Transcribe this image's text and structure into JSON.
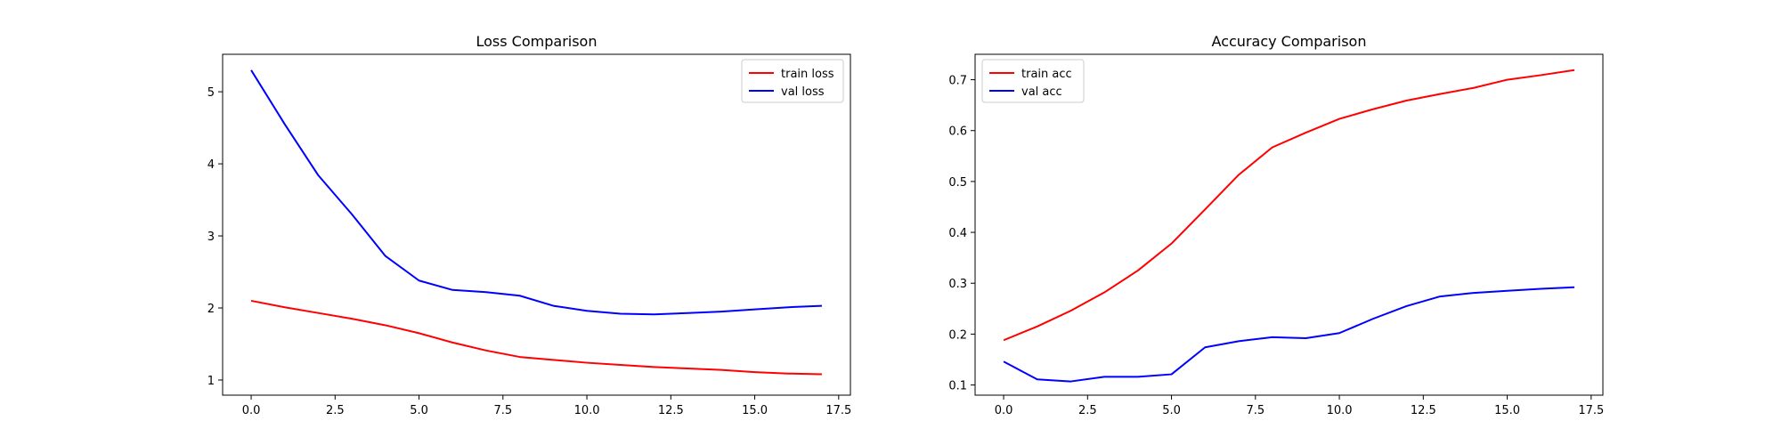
{
  "chart_data": [
    {
      "type": "line",
      "title": "Loss Comparison",
      "xlabel": "",
      "ylabel": "",
      "xlim": [
        -0.85,
        17.85
      ],
      "ylim": [
        0.79,
        5.52
      ],
      "xticks": [
        0.0,
        2.5,
        5.0,
        7.5,
        10.0,
        12.5,
        15.0,
        17.5
      ],
      "xtick_labels": [
        "0.0",
        "2.5",
        "5.0",
        "7.5",
        "10.0",
        "12.5",
        "15.0",
        "17.5"
      ],
      "yticks": [
        1,
        2,
        3,
        4,
        5
      ],
      "ytick_labels": [
        "1",
        "2",
        "3",
        "4",
        "5"
      ],
      "grid": false,
      "legend_position": "upper right",
      "x": [
        0,
        1,
        2,
        3,
        4,
        5,
        6,
        7,
        8,
        9,
        10,
        11,
        12,
        13,
        14,
        15,
        16,
        17
      ],
      "series": [
        {
          "name": "train loss",
          "color": "#ff0000",
          "values": [
            2.1,
            2.01,
            1.93,
            1.85,
            1.76,
            1.65,
            1.52,
            1.41,
            1.32,
            1.28,
            1.24,
            1.21,
            1.18,
            1.16,
            1.14,
            1.11,
            1.09,
            1.08
          ]
        },
        {
          "name": "val loss",
          "color": "#0000ff",
          "values": [
            5.3,
            4.55,
            3.84,
            3.3,
            2.72,
            2.38,
            2.25,
            2.22,
            2.17,
            2.03,
            1.96,
            1.92,
            1.91,
            1.93,
            1.95,
            1.98,
            2.01,
            2.03
          ]
        }
      ]
    },
    {
      "type": "line",
      "title": "Accuracy Comparison",
      "xlabel": "",
      "ylabel": "",
      "xlim": [
        -0.85,
        17.85
      ],
      "ylim": [
        0.08,
        0.75
      ],
      "xticks": [
        0.0,
        2.5,
        5.0,
        7.5,
        10.0,
        12.5,
        15.0,
        17.5
      ],
      "xtick_labels": [
        "0.0",
        "2.5",
        "5.0",
        "7.5",
        "10.0",
        "12.5",
        "15.0",
        "17.5"
      ],
      "yticks": [
        0.1,
        0.2,
        0.3,
        0.4,
        0.5,
        0.6,
        0.7
      ],
      "ytick_labels": [
        "0.1",
        "0.2",
        "0.3",
        "0.4",
        "0.5",
        "0.6",
        "0.7"
      ],
      "grid": false,
      "legend_position": "upper left",
      "x": [
        0,
        1,
        2,
        3,
        4,
        5,
        6,
        7,
        8,
        9,
        10,
        11,
        12,
        13,
        14,
        15,
        16,
        17
      ],
      "series": [
        {
          "name": "train acc",
          "color": "#ff0000",
          "values": [
            0.188,
            0.215,
            0.246,
            0.282,
            0.325,
            0.378,
            0.445,
            0.513,
            0.567,
            0.596,
            0.623,
            0.642,
            0.659,
            0.672,
            0.684,
            0.7,
            0.709,
            0.719
          ]
        },
        {
          "name": "val acc",
          "color": "#0000ff",
          "values": [
            0.146,
            0.111,
            0.107,
            0.116,
            0.116,
            0.121,
            0.174,
            0.186,
            0.194,
            0.192,
            0.202,
            0.23,
            0.255,
            0.274,
            0.281,
            0.285,
            0.289,
            0.292
          ]
        }
      ]
    }
  ]
}
